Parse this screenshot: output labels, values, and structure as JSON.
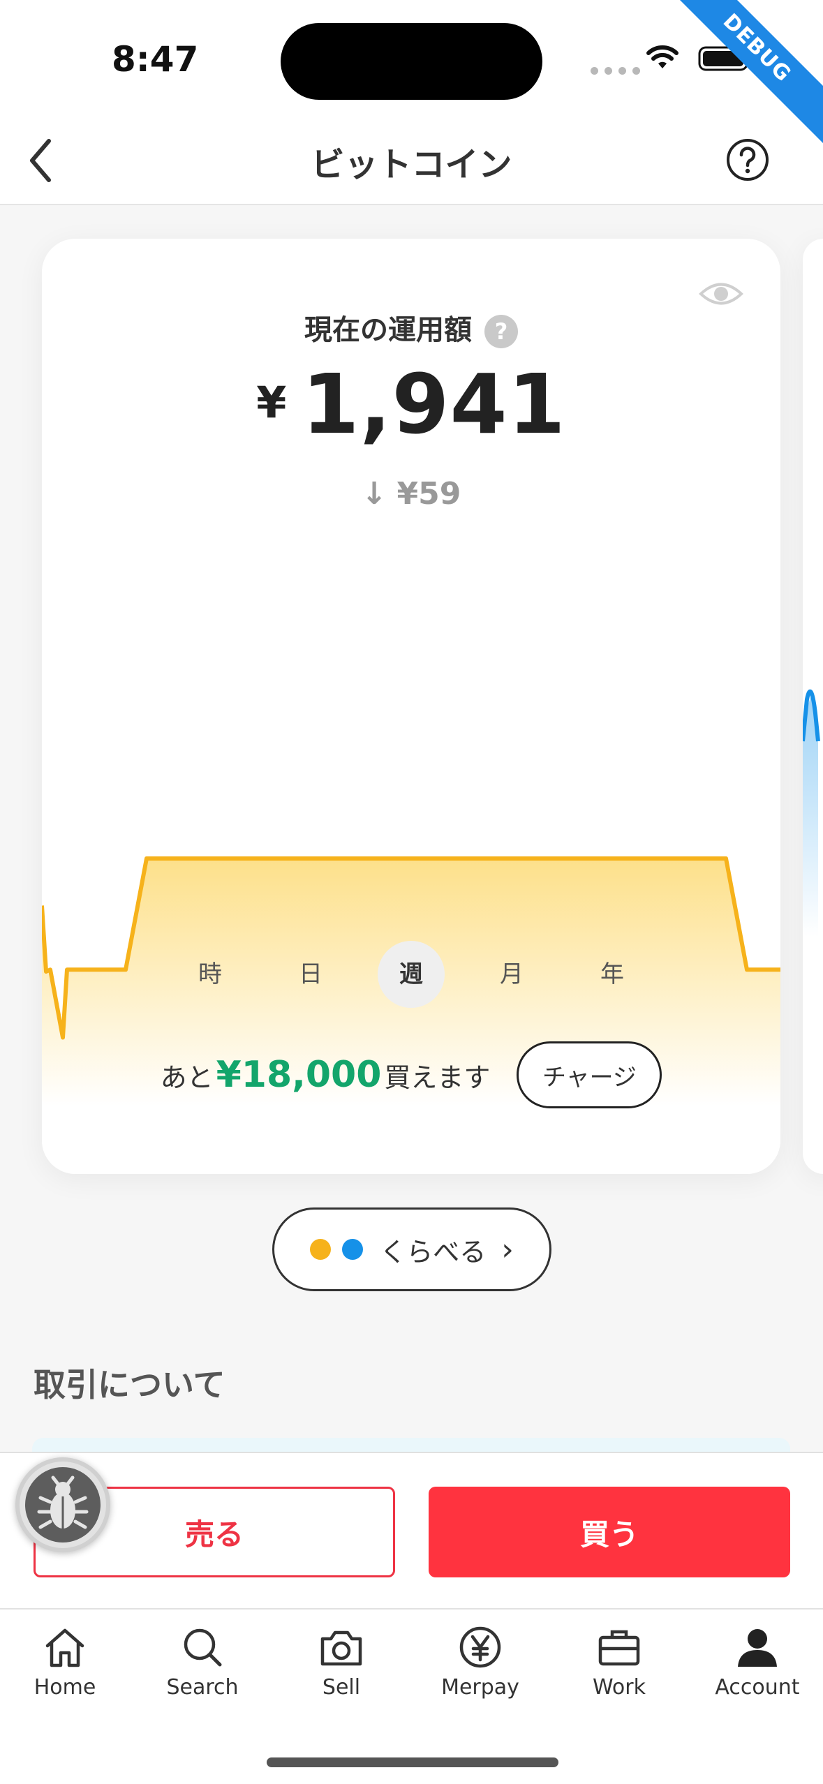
{
  "status_bar": {
    "time": "8:47",
    "debug_label": "DEBUG"
  },
  "header": {
    "title": "ビットコイン"
  },
  "card": {
    "balance_label": "現在の運用額",
    "help_badge": "?",
    "currency_symbol": "¥",
    "balance_value": "1,941",
    "change_arrow": "↓",
    "change_value": "¥59",
    "periods": [
      {
        "label": "時",
        "active": false
      },
      {
        "label": "日",
        "active": false
      },
      {
        "label": "週",
        "active": true
      },
      {
        "label": "月",
        "active": false
      },
      {
        "label": "年",
        "active": false
      }
    ],
    "buy_prefix": "あと",
    "buy_amount": "¥18,000",
    "buy_suffix": "買えます",
    "charge_label": "チャージ"
  },
  "chart_data": {
    "type": "area",
    "series": [
      {
        "values": [
          1975,
          1940,
          1941,
          1905,
          1941,
          1941,
          1941,
          2000,
          2000,
          2000,
          2000,
          2000,
          2000,
          2000,
          2000,
          2000,
          1941,
          1941
        ]
      }
    ],
    "colors": {
      "line": "#f6b21b",
      "fill_top": "#fde08a",
      "fill_bottom": "#ffffff",
      "peek_line": "#1691e8"
    },
    "grid": false,
    "legend": "none"
  },
  "compare": {
    "label": "くらべる",
    "chevron": "›"
  },
  "section": {
    "title": "取引について"
  },
  "actions": {
    "sell_label": "売る",
    "buy_label": "買う"
  },
  "tab_bar": {
    "items": [
      {
        "label": "Home",
        "icon": "home-icon"
      },
      {
        "label": "Search",
        "icon": "search-icon"
      },
      {
        "label": "Sell",
        "icon": "camera-icon"
      },
      {
        "label": "Merpay",
        "icon": "yen-icon"
      },
      {
        "label": "Work",
        "icon": "briefcase-icon"
      },
      {
        "label": "Account",
        "icon": "account-icon"
      }
    ]
  },
  "theme": {
    "accent_red": "#ff333f",
    "green": "#13a56b",
    "bitcoin_yellow": "#f6b21b",
    "eth_blue": "#1691e8"
  }
}
